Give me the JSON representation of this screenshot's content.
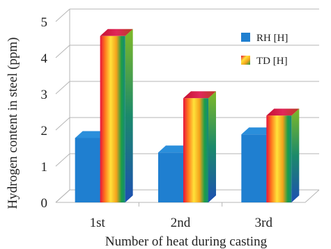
{
  "chart_data": {
    "type": "bar",
    "title": "",
    "xlabel": "Number of heat during casting",
    "ylabel": "Hydrogen content in steel (ppm)",
    "categories": [
      "1st",
      "2nd",
      "3rd"
    ],
    "series": [
      {
        "name": "RH [H]",
        "values": [
          1.78,
          1.38,
          1.88
        ],
        "color": "#1f7fd0",
        "style": "solid-blue"
      },
      {
        "name": "TD [H]",
        "values": [
          4.6,
          2.88,
          2.4
        ],
        "color": "rainbow",
        "style": "rainbow-gradient"
      }
    ],
    "ylim": [
      0,
      5
    ],
    "yticks": [
      0,
      1,
      2,
      3,
      4,
      5
    ],
    "grid": true,
    "legend": "top-right",
    "three_d": true
  }
}
